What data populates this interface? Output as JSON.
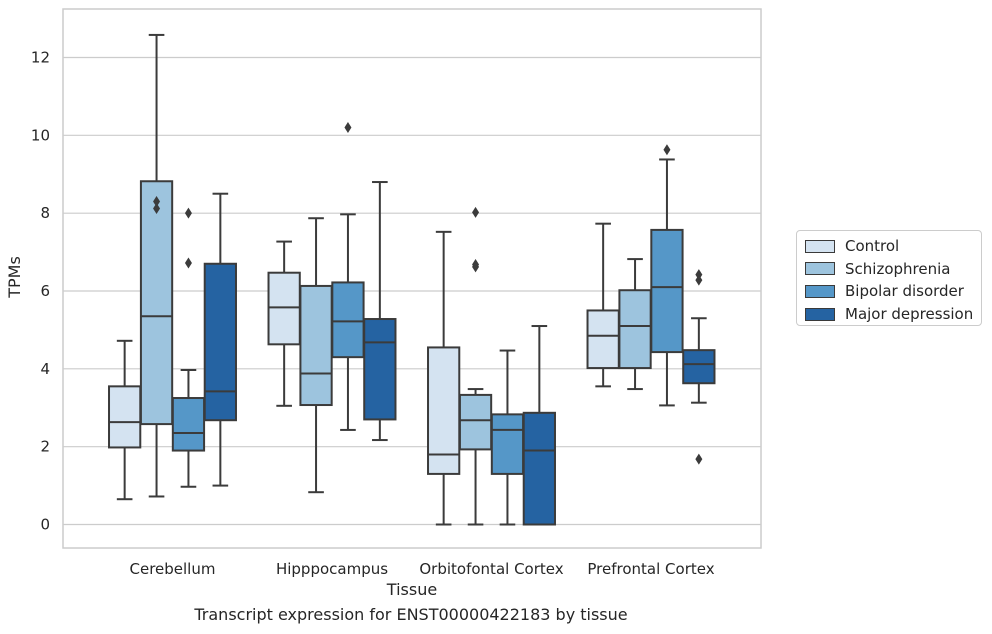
{
  "chart_data": {
    "type": "box",
    "xlabel": "Tissue",
    "ylabel": "TPMs",
    "ylim": [
      -0.6,
      13.0
    ],
    "yticks": [
      0,
      2,
      4,
      6,
      8,
      10,
      12
    ],
    "grid": "horizontal",
    "legend_position": "right",
    "categories": [
      "Cerebellum",
      "Hipppocampus",
      "Orbitofontal Cortex",
      "Prefrontal Cortex"
    ],
    "series": [
      {
        "name": "Control",
        "color": "#d4e3f1",
        "boxes": [
          {
            "whislo": 0.65,
            "q1": 1.98,
            "med": 2.63,
            "q3": 3.55,
            "whishi": 4.72,
            "fliers": []
          },
          {
            "whislo": 3.05,
            "q1": 4.63,
            "med": 5.58,
            "q3": 6.47,
            "whishi": 7.27,
            "fliers": []
          },
          {
            "whislo": 0.0,
            "q1": 1.3,
            "med": 1.8,
            "q3": 4.55,
            "whishi": 7.52,
            "fliers": []
          },
          {
            "whislo": 3.55,
            "q1": 4.02,
            "med": 4.85,
            "q3": 5.5,
            "whishi": 7.73,
            "fliers": []
          }
        ]
      },
      {
        "name": "Schizophrenia",
        "color": "#9dc4de",
        "boxes": [
          {
            "whislo": 0.72,
            "q1": 2.58,
            "med": 5.35,
            "q3": 8.82,
            "whishi": 12.58,
            "fliers": [
              8.12,
              8.3
            ]
          },
          {
            "whislo": 0.83,
            "q1": 3.07,
            "med": 3.88,
            "q3": 6.13,
            "whishi": 7.87,
            "fliers": []
          },
          {
            "whislo": 0.0,
            "q1": 1.93,
            "med": 2.68,
            "q3": 3.33,
            "whishi": 3.48,
            "fliers": [
              6.62,
              6.68,
              8.02
            ]
          },
          {
            "whislo": 3.48,
            "q1": 4.02,
            "med": 5.1,
            "q3": 6.02,
            "whishi": 6.82,
            "fliers": []
          }
        ]
      },
      {
        "name": "Bipolar disorder",
        "color": "#5597c8",
        "boxes": [
          {
            "whislo": 0.97,
            "q1": 1.9,
            "med": 2.35,
            "q3": 3.25,
            "whishi": 3.97,
            "fliers": [
              6.72,
              8.0
            ]
          },
          {
            "whislo": 2.43,
            "q1": 4.3,
            "med": 5.22,
            "q3": 6.22,
            "whishi": 7.97,
            "fliers": [
              10.2
            ]
          },
          {
            "whislo": 0.0,
            "q1": 1.3,
            "med": 2.43,
            "q3": 2.83,
            "whishi": 4.47,
            "fliers": []
          },
          {
            "whislo": 3.06,
            "q1": 4.43,
            "med": 6.1,
            "q3": 7.57,
            "whishi": 9.38,
            "fliers": [
              9.63
            ]
          }
        ]
      },
      {
        "name": "Major depression",
        "color": "#2563a2",
        "boxes": [
          {
            "whislo": 1.0,
            "q1": 2.68,
            "med": 3.42,
            "q3": 6.7,
            "whishi": 8.5,
            "fliers": []
          },
          {
            "whislo": 2.17,
            "q1": 2.7,
            "med": 4.68,
            "q3": 5.28,
            "whishi": 8.8,
            "fliers": []
          },
          {
            "whislo": 0.0,
            "q1": 0.0,
            "med": 1.9,
            "q3": 2.87,
            "whishi": 5.1,
            "fliers": []
          },
          {
            "whislo": 3.13,
            "q1": 3.63,
            "med": 4.12,
            "q3": 4.48,
            "whishi": 5.3,
            "fliers": [
              1.68,
              6.28,
              6.42
            ]
          }
        ]
      }
    ]
  },
  "caption": "Transcript expression for ENST00000422183 by tissue"
}
